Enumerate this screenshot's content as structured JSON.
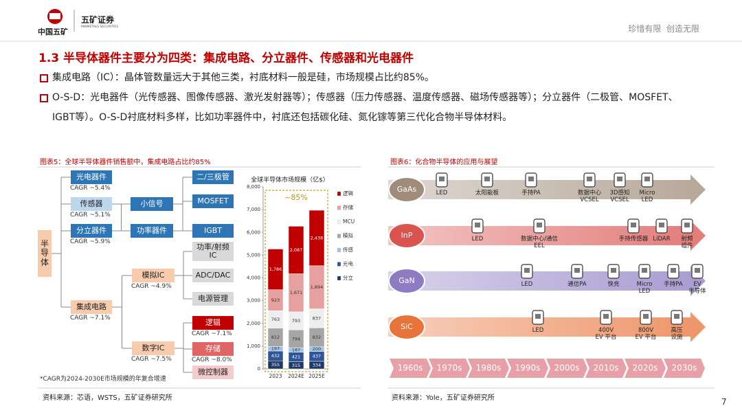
{
  "header": {
    "logo_text": "中国五矿",
    "brand": "五矿证券",
    "brand_en": "MINMETALS SECURITIES",
    "slogan": "珍惜有限  创造无限"
  },
  "title": "1.3 半导体器件主要分为四类：集成电路、分立器件、传感器和光电器件",
  "bullets": [
    "集成电路（IC）：晶体管数量远大于其他三类，衬底材料一般是硅，市场规模占比约85%。",
    "O-S-D：光电器件（光传感器、图像传感器、激光发射器等）；传感器（压力传感器、温度传感器、磁场传感器等）；分立器件（二极管、MOSFET、IGBT等）。O-S-D衬底材料多样，比如功率器件中，衬底还包括碳化硅、氮化镓等第三代化合物半导体材料。"
  ],
  "left_panel": {
    "caption": "图表5：全球半导体器件销售额中，集成电路占比约85%",
    "root": "半导体",
    "nodes": [
      {
        "label": "光电器件",
        "cagr": "CAGR ~5.4%",
        "color": "#2e75b6"
      },
      {
        "label": "传感器",
        "cagr": "CAGR ~5.1%",
        "color": "#bdd7ee"
      },
      {
        "label": "分立器件",
        "cagr": "CAGR ~5.9%",
        "color": "#2e75b6"
      },
      {
        "label": "集成电路",
        "cagr": "CAGR ~7.1%",
        "color": "#f8cbad"
      },
      {
        "label": "小信号",
        "color": "#2e75b6"
      },
      {
        "label": "功率器件",
        "color": "#2e75b6"
      },
      {
        "label": "模拟IC",
        "cagr": "CAGR ~4.9%",
        "color": "#f8cbad"
      },
      {
        "label": "数字IC",
        "cagr": "CAGR ~7.5%",
        "color": "#f8cbad"
      },
      {
        "label": "二/三极管",
        "color": "#2e75b6"
      },
      {
        "label": "MOSFET",
        "color": "#2e75b6"
      },
      {
        "label": "IGBT",
        "color": "#2e75b6"
      },
      {
        "label": "功率/射频\nIC",
        "color": "#d9d9d9"
      },
      {
        "label": "ADC/DAC",
        "color": "#d9d9d9"
      },
      {
        "label": "电源管理",
        "color": "#d9d9d9"
      },
      {
        "label": "逻辑",
        "cagr": "CAGR ~7.1%",
        "color": "#c00000"
      },
      {
        "label": "存储",
        "cagr": "CAGR ~8.0%",
        "color": "#e06666"
      },
      {
        "label": "微控制器",
        "color": "#f4cccc"
      }
    ],
    "note": "*CAGR为2024-2030E市场规模的年复合增速",
    "source": "资料来源：芯语，WSTS，五矿证券研究所"
  },
  "chart_data": {
    "type": "stacked_bar",
    "title": "全球半导体市场规模（亿$）",
    "annotation": "~85%",
    "categories": [
      "2023",
      "2024E",
      "2025E"
    ],
    "series": [
      {
        "name": "分立",
        "color": "#1f3864",
        "values": [
          355,
          315,
          334
        ]
      },
      {
        "name": "光电",
        "color": "#2f5597",
        "values": [
          432,
          421,
          437
        ]
      },
      {
        "name": "传感",
        "color": "#9dc3e6",
        "values": [
          197,
          187,
          200
        ]
      },
      {
        "name": "模拟",
        "color": "#a6a6a6",
        "values": [
          812,
          794,
          832
        ]
      },
      {
        "name": "MCU",
        "color": "#eeeeee",
        "values": [
          763,
          793,
          837
        ]
      },
      {
        "name": "存储",
        "color": "#e6a0a0",
        "values": [
          923,
          1671,
          1894
        ],
        "value_labels": [
          "923",
          "1,671",
          "1,894"
        ]
      },
      {
        "name": "逻辑",
        "color": "#c00000",
        "values": [
          1786,
          2087,
          2438
        ],
        "value_labels": [
          "1,786",
          "2,087",
          "2,438"
        ]
      }
    ],
    "ylim": [
      0,
      8000
    ],
    "yticks": [
      0,
      {
        "value": 1000,
        "label": "1,000"
      },
      {
        "value": 2000,
        "label": "2,000"
      },
      {
        "value": 3000,
        "label": "3,000"
      },
      {
        "value": 4000,
        "label": "4,000"
      },
      {
        "value": 5000,
        "label": "5,000"
      },
      {
        "value": 6000,
        "label": "6,000"
      },
      {
        "value": 7000,
        "label": "7,000"
      },
      {
        "value": 8000,
        "label": "8,000"
      }
    ]
  },
  "right_panel": {
    "caption": "图表6：化合物半导体的应用与展望",
    "rows": [
      {
        "material": "GaAs",
        "color": "#a08c7a",
        "items": [
          "LED",
          "太阳能板",
          "手持PA",
          "数据中心\nVCSEL",
          "3D感知\nVCSEL",
          "Micro\nLED"
        ]
      },
      {
        "material": "InP",
        "color": "#d9534f",
        "items": [
          "LED",
          "数据中心/通信\nEEL",
          "手持传感器",
          "LiDAR",
          "射频\n组件"
        ]
      },
      {
        "material": "GaN",
        "color": "#8e7cc3",
        "items": [
          "LED",
          "通信PA",
          "快充",
          "Micro\nLED",
          "手持PA",
          "EV\n半导体"
        ]
      },
      {
        "material": "SiC",
        "color": "#e8743b",
        "items": [
          "LED",
          "400V\nEV 平台",
          "800V\nEV 平台",
          "高压\n设施"
        ]
      }
    ],
    "decades": [
      "1960s",
      "1970s",
      "1980s",
      "1990s",
      "2000s",
      "2010s",
      "2020s",
      "2030s"
    ],
    "source": "资料来源：Yole，五矿证券研究所"
  },
  "page_number": "7"
}
